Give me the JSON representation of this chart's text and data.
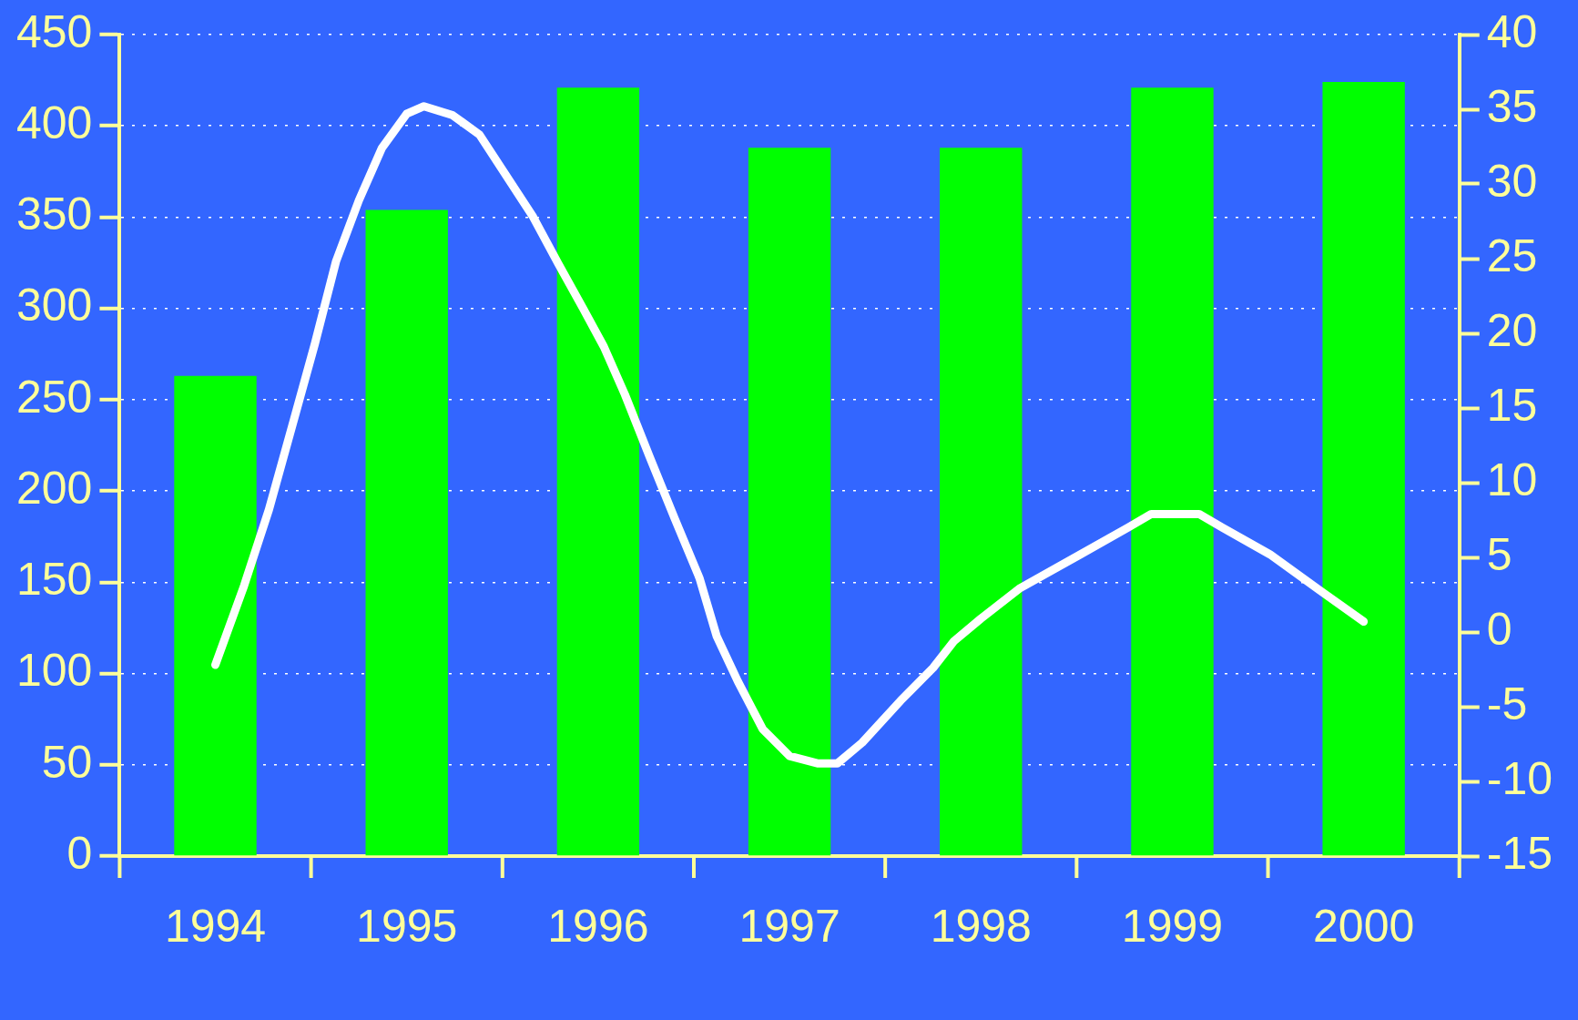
{
  "chart_data": {
    "type": "bar",
    "x": [
      1994,
      1995,
      1996,
      1997,
      1998,
      1999,
      2000
    ],
    "xlim": [
      1993.5,
      2000.5
    ],
    "xticks": [
      1994,
      1995,
      1996,
      1997,
      1998,
      1999,
      2000
    ],
    "ylim": [
      0,
      450
    ],
    "yticks": [
      0,
      50,
      100,
      150,
      200,
      250,
      300,
      350,
      400,
      450
    ],
    "y2lim": [
      -15,
      40
    ],
    "y2ticks": [
      -15,
      -10,
      -5,
      0,
      5,
      10,
      15,
      20,
      25,
      30,
      35,
      40
    ],
    "grid": "y",
    "series": [
      {
        "color": "#00ff00",
        "values": [
          263,
          354,
          421,
          388,
          388,
          421,
          424
        ]
      },
      {
        "type": "line",
        "axis": "y2",
        "color": "#ffffff",
        "x": [
          1994.0,
          1994.15,
          1994.28,
          1994.41,
          1994.52,
          1994.63,
          1994.75,
          1994.87,
          1995.0,
          1995.09,
          1995.24,
          1995.38,
          1995.66,
          1995.79,
          1995.92,
          1996.03,
          1996.14,
          1996.27,
          1996.4,
          1996.53,
          1996.62,
          1996.73,
          1996.86,
          1997.0,
          1997.15,
          1997.25,
          1997.38,
          1997.58,
          1997.75,
          1997.86,
          1998.0,
          1998.2,
          1998.52,
          1998.77,
          1998.89,
          1999.14,
          1999.26,
          1999.51,
          1999.77,
          2000.0
        ],
        "values": [
          -2.2,
          3.1,
          8.2,
          14.2,
          19.3,
          24.8,
          28.9,
          32.4,
          34.7,
          35.2,
          34.6,
          33.3,
          27.8,
          24.7,
          21.7,
          19.1,
          15.9,
          11.7,
          7.6,
          3.6,
          -0.3,
          -3.3,
          -6.5,
          -8.3,
          -8.8,
          -8.8,
          -7.4,
          -4.6,
          -2.4,
          -0.6,
          0.9,
          2.9,
          5.2,
          7.0,
          7.9,
          7.9,
          7.0,
          5.2,
          2.8,
          0.7
        ]
      }
    ]
  }
}
